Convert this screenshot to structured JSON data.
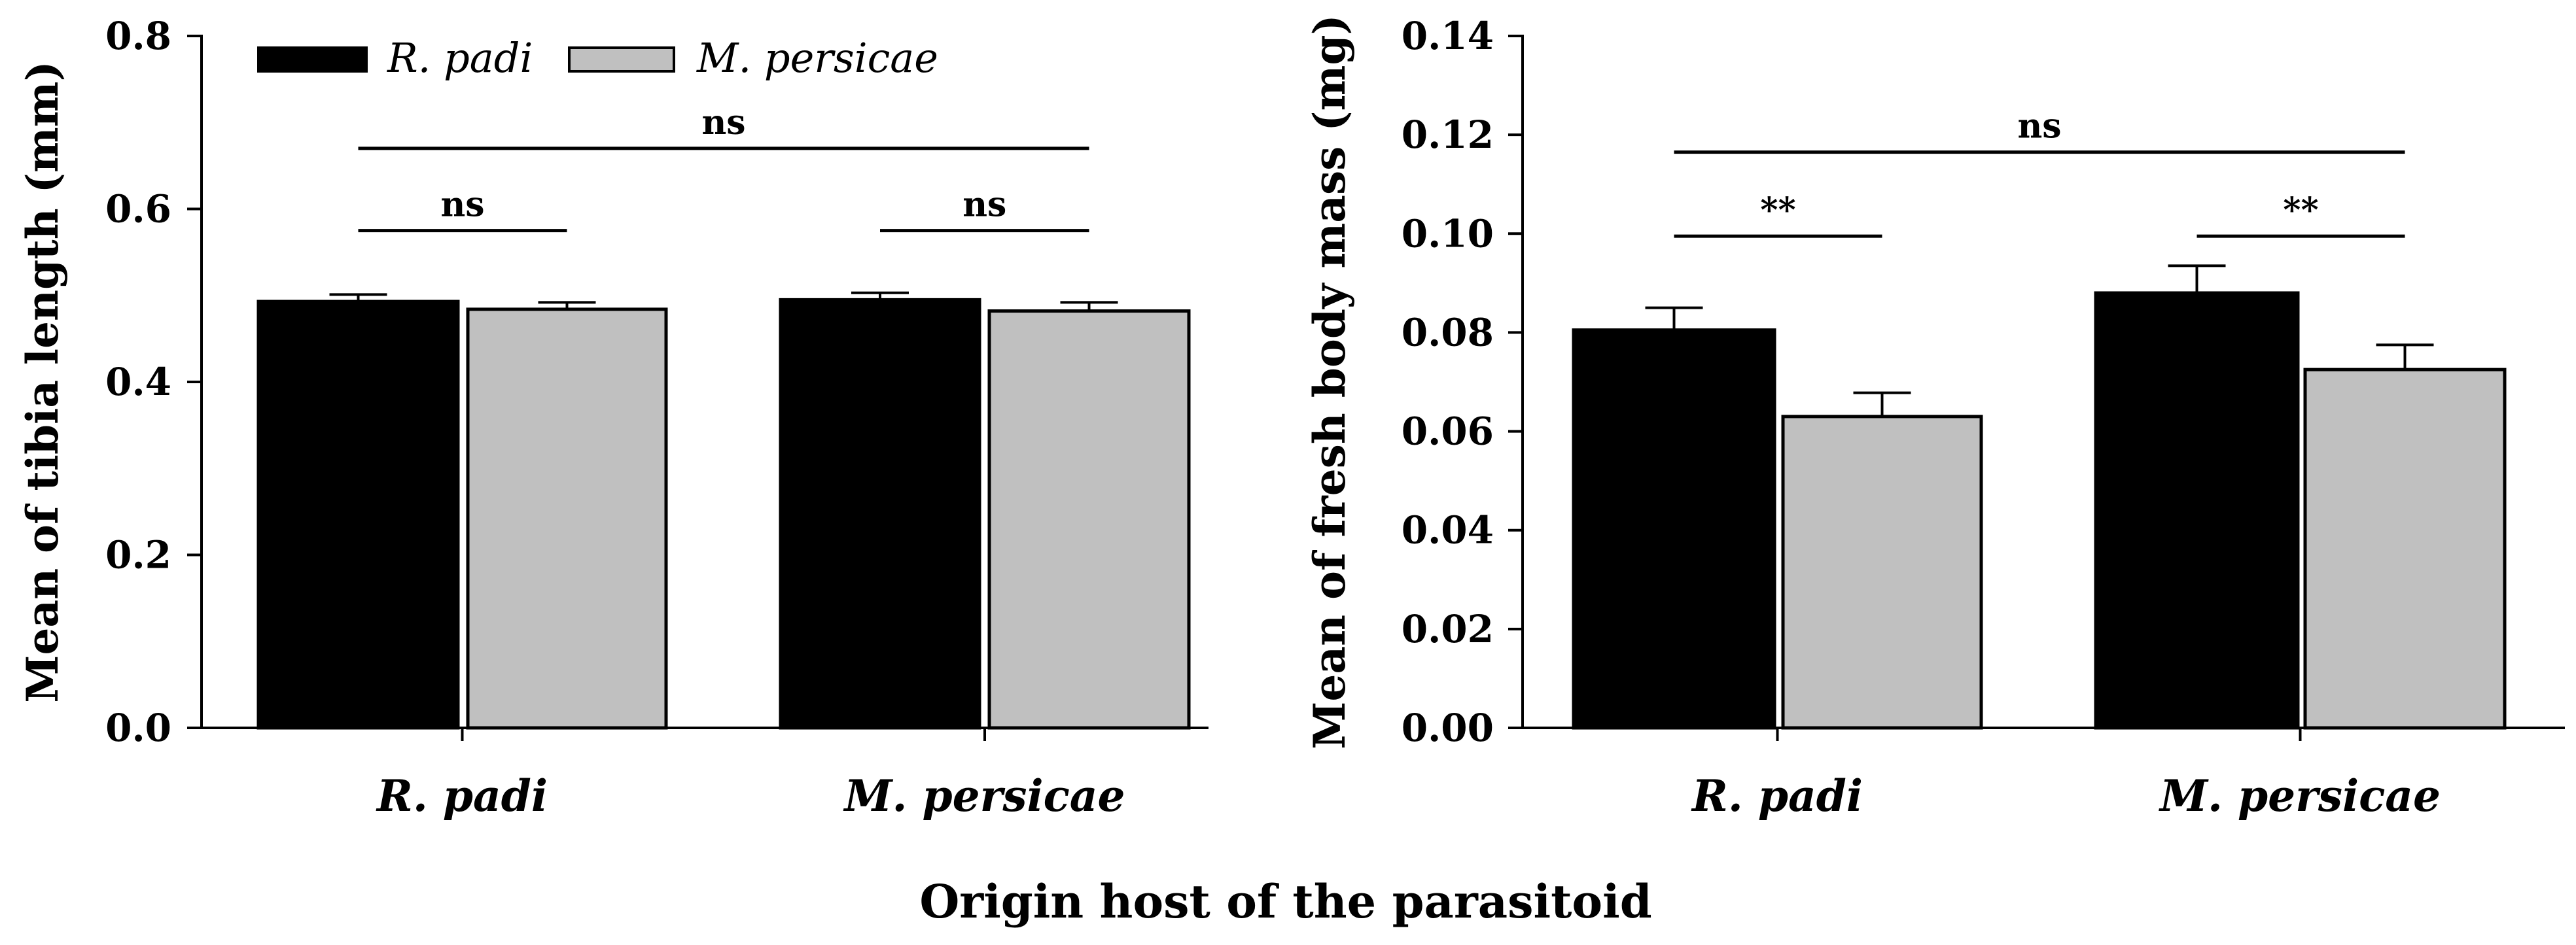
{
  "figure": {
    "shared_xlabel": "Origin host of the parasitoid",
    "legend": [
      {
        "name": "R. padi",
        "color": "#000000"
      },
      {
        "name": "M. persicae",
        "color": "#c0c0c0"
      }
    ]
  },
  "chart_data": [
    {
      "type": "bar",
      "title": "",
      "xlabel": "",
      "ylabel": "Mean of tibia length (mm)",
      "categories": [
        "R. padi",
        "M. persicae"
      ],
      "ylim": [
        0,
        0.8
      ],
      "yticks": [
        0.0,
        0.2,
        0.4,
        0.6,
        0.8
      ],
      "ytick_labels": [
        "0.0",
        "0.2",
        "0.4",
        "0.6",
        "0.8"
      ],
      "series": [
        {
          "name": "R. padi",
          "color": "#000000",
          "values": [
            0.493,
            0.495
          ],
          "errors": [
            0.008,
            0.008
          ]
        },
        {
          "name": "M. persicae",
          "color": "#c0c0c0",
          "values": [
            0.484,
            0.482
          ],
          "errors": [
            0.008,
            0.01
          ]
        }
      ],
      "legend_position": "top-left",
      "significance": [
        {
          "from": [
            0,
            0
          ],
          "to": [
            1,
            1
          ],
          "y": 0.67,
          "label": "ns"
        },
        {
          "from": [
            0,
            0
          ],
          "to": [
            0,
            1
          ],
          "y": 0.575,
          "label": "ns"
        },
        {
          "from": [
            1,
            0
          ],
          "to": [
            1,
            1
          ],
          "y": 0.575,
          "label": "ns"
        }
      ]
    },
    {
      "type": "bar",
      "title": "",
      "xlabel": "",
      "ylabel": "Mean of fresh body mass (mg)",
      "categories": [
        "R. padi",
        "M. persicae"
      ],
      "ylim": [
        0,
        0.14
      ],
      "yticks": [
        0.0,
        0.02,
        0.04,
        0.06,
        0.08,
        0.1,
        0.12,
        0.14
      ],
      "ytick_labels": [
        "0.00",
        "0.02",
        "0.04",
        "0.06",
        "0.08",
        "0.10",
        "0.12",
        "0.14"
      ],
      "series": [
        {
          "name": "R. padi",
          "color": "#000000",
          "values": [
            0.0805,
            0.088
          ],
          "errors": [
            0.0045,
            0.0055
          ]
        },
        {
          "name": "M. persicae",
          "color": "#c0c0c0",
          "values": [
            0.063,
            0.0725
          ],
          "errors": [
            0.0048,
            0.005
          ]
        }
      ],
      "significance": [
        {
          "from": [
            0,
            0
          ],
          "to": [
            1,
            1
          ],
          "y": 0.1165,
          "label": "ns"
        },
        {
          "from": [
            0,
            0
          ],
          "to": [
            0,
            1
          ],
          "y": 0.0995,
          "label": "**"
        },
        {
          "from": [
            1,
            0
          ],
          "to": [
            1,
            1
          ],
          "y": 0.0995,
          "label": "**"
        }
      ]
    }
  ]
}
